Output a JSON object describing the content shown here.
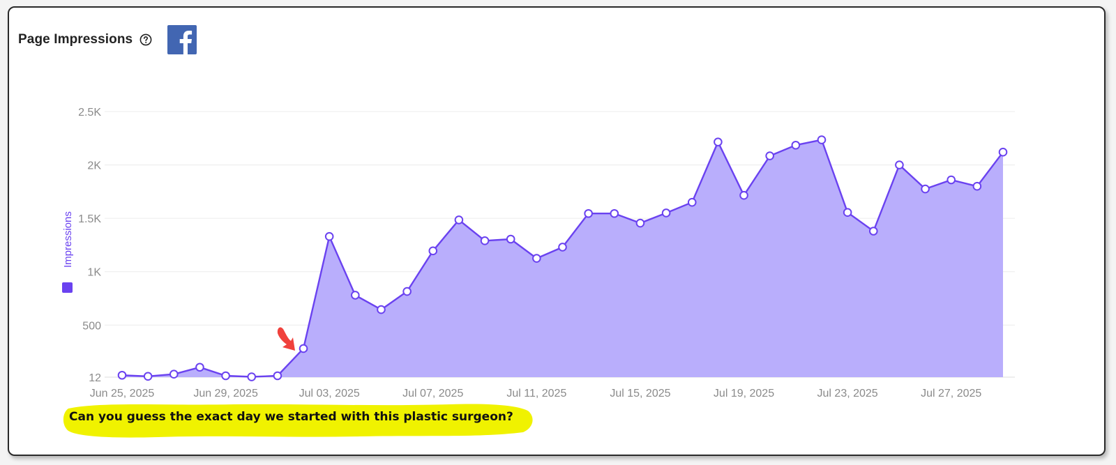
{
  "header": {
    "title": "Page Impressions",
    "help_icon": "question-circle-icon",
    "platform_icon": "facebook-logo-icon"
  },
  "colors": {
    "series_line": "#6a42f0",
    "series_fill": "#b9aefc",
    "marker_fill": "#ffffff",
    "grid": "#ececec",
    "tick_text": "#8a8a8a",
    "highlight": "#f0f200",
    "arrow": "#f0413c",
    "facebook_blue": "#4266b2"
  },
  "chart_data": {
    "type": "area",
    "ylabel": "Impressions",
    "legend_placement": "left, vertical along y-axis",
    "grid": true,
    "ylim": [
      12,
      2500
    ],
    "y_ticks": [
      12,
      500,
      1000,
      1500,
      2000,
      2500
    ],
    "y_tick_labels": [
      "12",
      "500",
      "1K",
      "1.5K",
      "2K",
      "2.5K"
    ],
    "x_tick_labels": [
      "Jun 25, 2025",
      "Jun 29, 2025",
      "Jul 03, 2025",
      "Jul 07, 2025",
      "Jul 11, 2025",
      "Jul 15, 2025",
      "Jul 19, 2025",
      "Jul 23, 2025",
      "Jul 27, 2025"
    ],
    "x": [
      "2025-06-25",
      "2025-06-26",
      "2025-06-27",
      "2025-06-28",
      "2025-06-29",
      "2025-06-30",
      "2025-07-01",
      "2025-07-02",
      "2025-07-03",
      "2025-07-04",
      "2025-07-05",
      "2025-07-06",
      "2025-07-07",
      "2025-07-08",
      "2025-07-09",
      "2025-07-10",
      "2025-07-11",
      "2025-07-12",
      "2025-07-13",
      "2025-07-14",
      "2025-07-15",
      "2025-07-16",
      "2025-07-17",
      "2025-07-18",
      "2025-07-19",
      "2025-07-20",
      "2025-07-21",
      "2025-07-22",
      "2025-07-23",
      "2025-07-24",
      "2025-07-25",
      "2025-07-26",
      "2025-07-27",
      "2025-07-28",
      "2025-07-29"
    ],
    "series": [
      {
        "name": "Impressions",
        "values": [
          30,
          20,
          40,
          105,
          25,
          15,
          25,
          280,
          1330,
          780,
          645,
          815,
          1195,
          1485,
          1290,
          1305,
          1125,
          1230,
          1545,
          1545,
          1455,
          1550,
          1650,
          2215,
          1715,
          2085,
          2185,
          2235,
          1555,
          1380,
          2000,
          1775,
          1860,
          1800,
          2120
        ]
      }
    ],
    "annotation": {
      "type": "arrow",
      "points_to": "2025-07-02"
    }
  },
  "caption": {
    "text": "Can you guess the exact day we started with this plastic surgeon?"
  }
}
